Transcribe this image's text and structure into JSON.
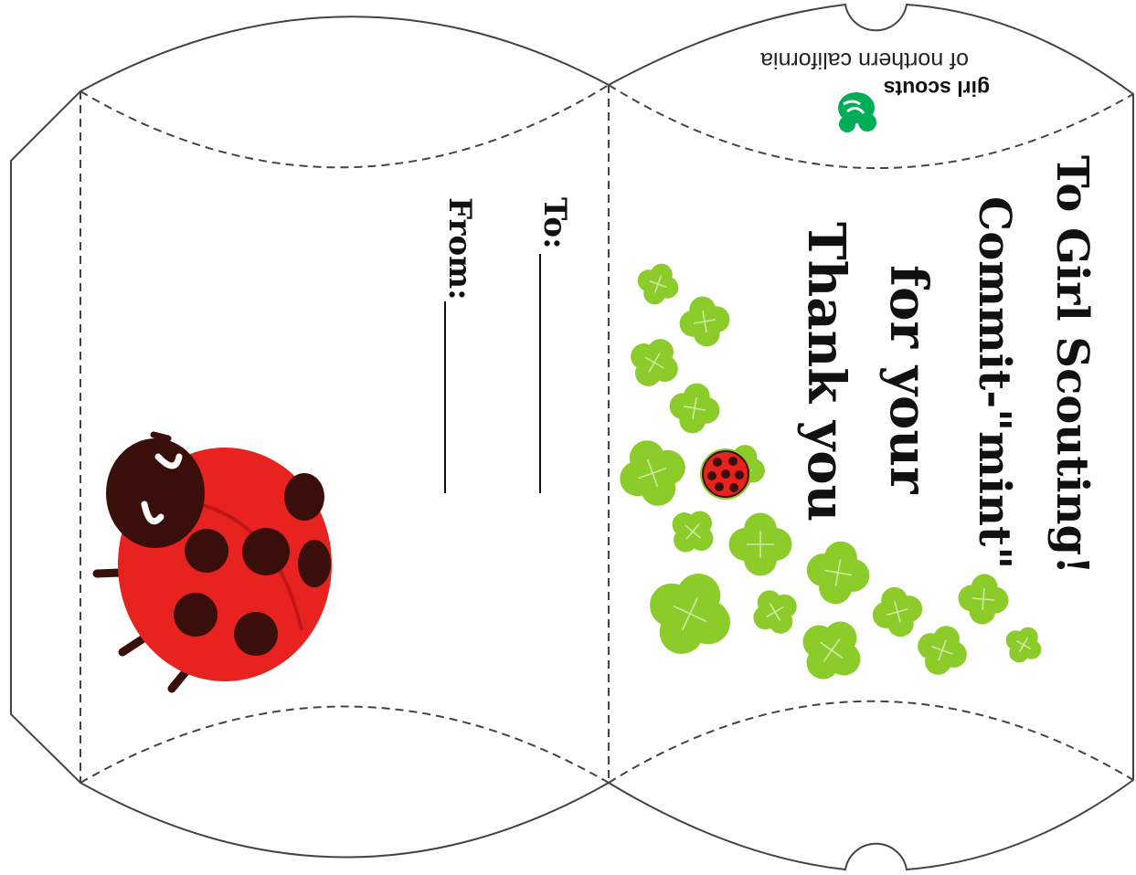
{
  "box": {
    "outline_color": "#444444",
    "fold_color": "#444444"
  },
  "headline": {
    "line1": "Thank you",
    "line2": "for your",
    "line3": "Commit-\"mint\"",
    "line4": "To Girl Scouting!"
  },
  "fields": {
    "to_label": "To:",
    "from_label": "From:"
  },
  "brand": {
    "name": "girl scouts",
    "sub": "of northern california",
    "color": "#00ae58"
  },
  "colors": {
    "clover": "#8ccc2a",
    "clover_dark": "#76b81e",
    "ladybug_shell": "#e8221e",
    "ladybug_head": "#3a0f0b",
    "ladybug_spot": "#3a0f0b"
  },
  "icons": {
    "ladybug": "ladybug-illustration",
    "clover": "four-leaf-clover-icon",
    "trefoil": "girl-scouts-trefoil-logo"
  }
}
